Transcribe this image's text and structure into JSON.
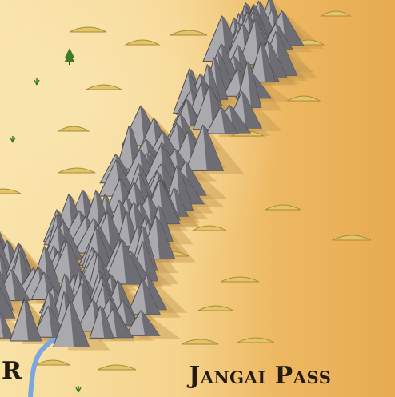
{
  "map": {
    "pass_label": "Jangai Pass",
    "edge_label": "R",
    "colors": {
      "desert_light": "#f7de9e",
      "desert_dark": "#e6a94a",
      "mountain_light": "#a9a9ae",
      "mountain_dark": "#6d6d73",
      "mountain_shadow": "#c69a52",
      "river": "#7aa7e0",
      "dune": "#e3c466",
      "shrub": "#3f7a2a"
    },
    "icons": [
      "mountain-icon",
      "dune-icon",
      "river",
      "pine-tree-icon",
      "grass-tuft-icon"
    ]
  }
}
